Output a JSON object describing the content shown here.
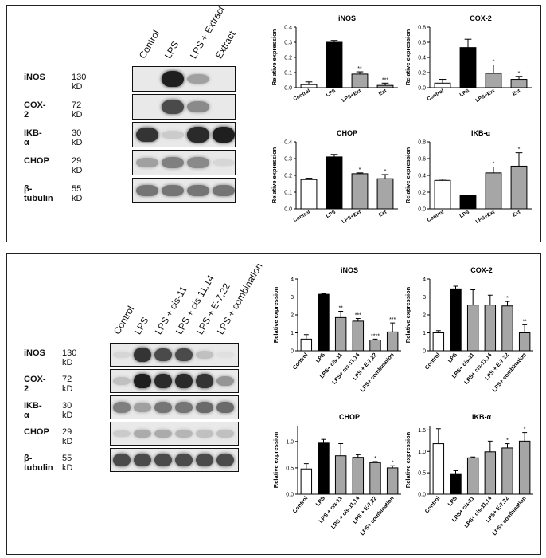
{
  "panel1": {
    "blot": {
      "columns": [
        "Control",
        "LPS",
        "LPS + Extract",
        "Extract"
      ],
      "rows": [
        {
          "protein": "iNOS",
          "kd": "130 kD",
          "bands": [
            0,
            0.95,
            0.35,
            0
          ]
        },
        {
          "protein": "COX-2",
          "kd": "72 kD",
          "bands": [
            0,
            0.75,
            0.45,
            0
          ]
        },
        {
          "protein": "IKB-α",
          "kd": "30 kD",
          "bands": [
            0.85,
            0.15,
            0.9,
            0.95
          ]
        },
        {
          "protein": "CHOP",
          "kd": "29 kD",
          "bands": [
            0.35,
            0.5,
            0.45,
            0.1
          ]
        },
        {
          "protein": "β-tubulin",
          "kd": "55 kD",
          "bands": [
            0.55,
            0.55,
            0.55,
            0.55
          ]
        }
      ]
    }
  },
  "panel2": {
    "blot": {
      "columns": [
        "Control",
        "LPS",
        "LPS + cis-11",
        "LPS + cis 11,14",
        "LPS + E-7,22",
        "LPS + combination"
      ],
      "rows": [
        {
          "protein": "iNOS",
          "kd": "130 kD",
          "bands": [
            0.1,
            0.85,
            0.75,
            0.75,
            0.2,
            0.05
          ]
        },
        {
          "protein": "COX-2",
          "kd": "72 kD",
          "bands": [
            0.2,
            0.95,
            0.9,
            0.9,
            0.85,
            0.4
          ]
        },
        {
          "protein": "IKB-α",
          "kd": "30 kD",
          "bands": [
            0.5,
            0.35,
            0.55,
            0.55,
            0.6,
            0.6
          ]
        },
        {
          "protein": "CHOP",
          "kd": "29 kD",
          "bands": [
            0.15,
            0.3,
            0.3,
            0.25,
            0.2,
            0.2
          ]
        },
        {
          "protein": "β-tubulin",
          "kd": "55 kD",
          "bands": [
            0.75,
            0.75,
            0.75,
            0.75,
            0.75,
            0.75
          ]
        }
      ]
    }
  },
  "chart_data": [
    {
      "id": "p1-inos",
      "type": "bar",
      "title": "iNOS",
      "ylabel": "Relative expression",
      "categories": [
        "Control",
        "LPS",
        "LPS+Ext",
        "Ext"
      ],
      "values": [
        0.02,
        0.3,
        0.09,
        0.015
      ],
      "errors": [
        0.018,
        0.012,
        0.015,
        0.015
      ],
      "sig": [
        "",
        "",
        "**",
        "***"
      ],
      "ylim": [
        0,
        0.4
      ],
      "yticks": [
        "0.0",
        "0.1",
        "0.2",
        "0.3",
        "0.4"
      ],
      "fills": [
        "#ffffff",
        "#000000",
        "#a6a6a6",
        "#a6a6a6"
      ],
      "xrot": -30
    },
    {
      "id": "p1-cox2",
      "type": "bar",
      "title": "COX-2",
      "ylabel": "Relative expression",
      "categories": [
        "Control",
        "LPS",
        "LPS+Ext",
        "Ext"
      ],
      "values": [
        0.06,
        0.53,
        0.19,
        0.11
      ],
      "errors": [
        0.05,
        0.11,
        0.11,
        0.04
      ],
      "sig": [
        "",
        "",
        "*",
        "*"
      ],
      "ylim": [
        0,
        0.8
      ],
      "yticks": [
        "0.0",
        "0.2",
        "0.4",
        "0.6",
        "0.8"
      ],
      "fills": [
        "#ffffff",
        "#000000",
        "#a6a6a6",
        "#a6a6a6"
      ],
      "xrot": -30
    },
    {
      "id": "p1-chop",
      "type": "bar",
      "title": "CHOP",
      "ylabel": "Relative expression",
      "categories": [
        "Control",
        "LPS",
        "LPS+Ext",
        "Ext"
      ],
      "values": [
        0.175,
        0.31,
        0.21,
        0.18
      ],
      "errors": [
        0.008,
        0.015,
        0.005,
        0.025
      ],
      "sig": [
        "",
        "",
        "*",
        "*"
      ],
      "ylim": [
        0,
        0.4
      ],
      "yticks": [
        "0.0",
        "0.1",
        "0.2",
        "0.3",
        "0.4"
      ],
      "fills": [
        "#ffffff",
        "#000000",
        "#a6a6a6",
        "#a6a6a6"
      ],
      "xrot": -30
    },
    {
      "id": "p1-ikba",
      "type": "bar",
      "title": "IKB-α",
      "ylabel": "Relative expression",
      "categories": [
        "Control",
        "LPS",
        "LPS+Ext",
        "Ext"
      ],
      "values": [
        0.34,
        0.16,
        0.43,
        0.51
      ],
      "errors": [
        0.015,
        0.005,
        0.07,
        0.16
      ],
      "sig": [
        "",
        "",
        "*",
        "*"
      ],
      "ylim": [
        0,
        0.8
      ],
      "yticks": [
        "0.0",
        "0.2",
        "0.4",
        "0.6",
        "0.8"
      ],
      "fills": [
        "#ffffff",
        "#000000",
        "#a6a6a6",
        "#a6a6a6"
      ],
      "xrot": -30
    },
    {
      "id": "p2-inos",
      "type": "bar",
      "title": "iNOS",
      "ylabel": "Relative expression",
      "categories": [
        "Control",
        "LPS",
        "LPS+ cis-11",
        "LPS+ cis-11,14",
        "LPS + E-7,22",
        "LPS+ combination"
      ],
      "values": [
        0.65,
        3.15,
        1.85,
        1.65,
        0.6,
        1.05
      ],
      "errors": [
        0.25,
        0.03,
        0.35,
        0.15,
        0.05,
        0.5
      ],
      "sig": [
        "",
        "",
        "**",
        "***",
        "****",
        "***"
      ],
      "ylim": [
        0,
        4
      ],
      "yticks": [
        "0",
        "1",
        "2",
        "3",
        "4"
      ],
      "fills": [
        "#ffffff",
        "#000000",
        "#a6a6a6",
        "#a6a6a6",
        "#a6a6a6",
        "#a6a6a6"
      ],
      "xrot": -50
    },
    {
      "id": "p2-cox2",
      "type": "bar",
      "title": "COX-2",
      "ylabel": "Relative expression",
      "categories": [
        "Control",
        "LPS",
        "LPS+ cis-11",
        "LPS+ cis-11,14",
        "LPS + E-7,22",
        "LPS+ combination"
      ],
      "values": [
        1.0,
        3.45,
        2.55,
        2.55,
        2.5,
        1.0
      ],
      "errors": [
        0.12,
        0.15,
        0.85,
        0.55,
        0.25,
        0.45
      ],
      "sig": [
        "",
        "",
        "",
        "",
        "*",
        "**"
      ],
      "ylim": [
        0,
        4
      ],
      "yticks": [
        "0",
        "1",
        "2",
        "3",
        "4"
      ],
      "fills": [
        "#ffffff",
        "#000000",
        "#a6a6a6",
        "#a6a6a6",
        "#a6a6a6",
        "#a6a6a6"
      ],
      "xrot": -50
    },
    {
      "id": "p2-chop",
      "type": "bar",
      "title": "CHOP",
      "ylabel": "Relative expression",
      "categories": [
        "Control",
        "LPS",
        "LPS + cis-11",
        "LPS + cis-11,14",
        "LPS + E-7,22",
        "LPS+ combination"
      ],
      "values": [
        0.48,
        0.97,
        0.73,
        0.7,
        0.6,
        0.5
      ],
      "errors": [
        0.1,
        0.07,
        0.23,
        0.05,
        0.02,
        0.04
      ],
      "sig": [
        "",
        "",
        "",
        "",
        "*",
        "*"
      ],
      "ylim": [
        0,
        1.3
      ],
      "yticks": [
        "0.0",
        "0.5",
        "1.0"
      ],
      "fills": [
        "#ffffff",
        "#000000",
        "#a6a6a6",
        "#a6a6a6",
        "#a6a6a6",
        "#a6a6a6"
      ],
      "xrot": -50
    },
    {
      "id": "p2-ikba",
      "type": "bar",
      "title": "IKB-α",
      "ylabel": "Relative expression",
      "categories": [
        "Control",
        "LPS",
        "LPS+ cis-11",
        "LPS+ cis-11,14",
        "LPS+ E-7,22",
        "LPS+ combination"
      ],
      "values": [
        1.18,
        0.48,
        0.85,
        0.99,
        1.08,
        1.24
      ],
      "errors": [
        0.35,
        0.07,
        0.02,
        0.25,
        0.1,
        0.2
      ],
      "sig": [
        "",
        "",
        "",
        "",
        "*",
        "*"
      ],
      "ylim": [
        0,
        1.6
      ],
      "yticks": [
        "0.0",
        "0.5",
        "1.0",
        "1.5"
      ],
      "fills": [
        "#ffffff",
        "#000000",
        "#a6a6a6",
        "#a6a6a6",
        "#a6a6a6",
        "#a6a6a6"
      ],
      "xrot": -50
    }
  ]
}
